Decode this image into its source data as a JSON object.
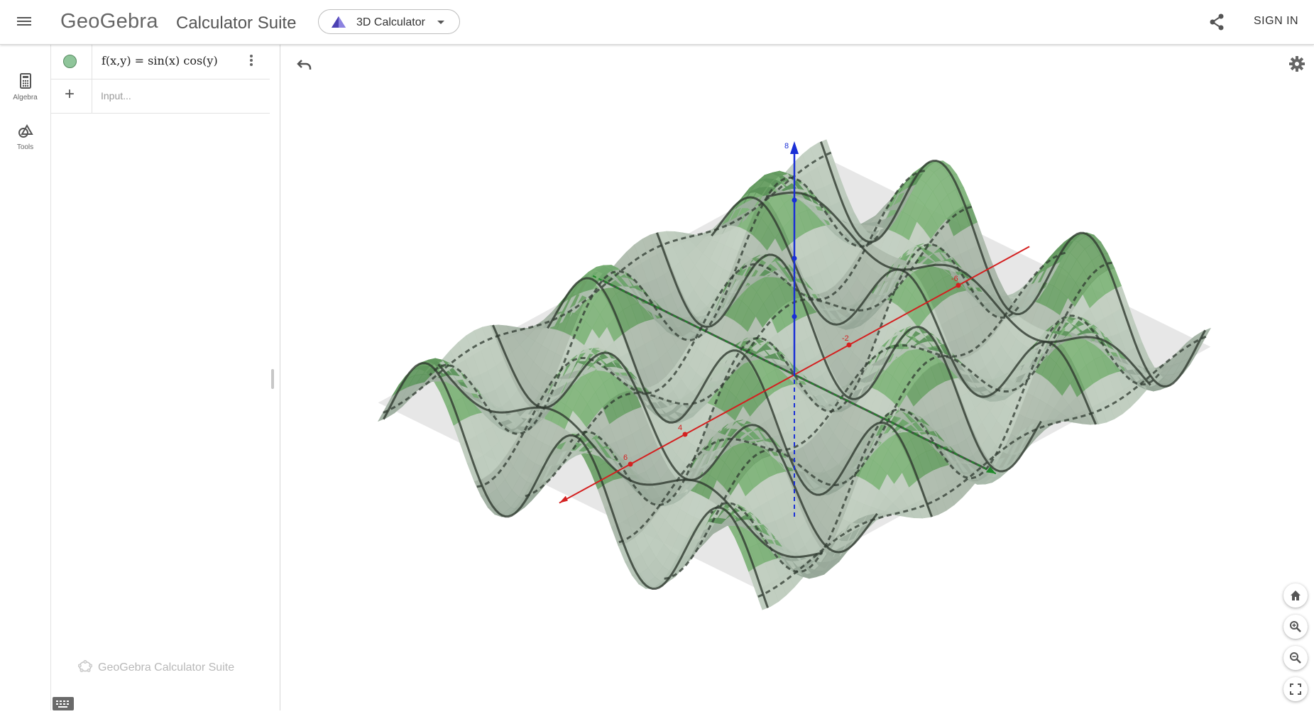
{
  "header": {
    "brand": "GeoGebra",
    "suite": "Calculator Suite",
    "app_label": "3D Calculator",
    "sign_in": "SIGN IN"
  },
  "icons": {
    "menu": "menu-icon",
    "app": "pyramid-icon",
    "share": "share-icon",
    "undo": "undo-icon",
    "settings": "gear-icon",
    "home": "home-icon",
    "zoom_in": "zoom-in-icon",
    "zoom_out": "zoom-out-icon",
    "fullscreen": "fullscreen-icon",
    "keyboard": "keyboard-icon"
  },
  "rail": {
    "algebra": "Algebra",
    "tools": "Tools"
  },
  "algebra": {
    "expression": "f(x,y) = sin(x) cos(y)",
    "input_placeholder": "Input...",
    "footer": "GeoGebra Calculator Suite"
  },
  "axes": {
    "z_max_label": "8",
    "x_labels": [
      "-6",
      "-2",
      "4",
      "6"
    ]
  },
  "colors": {
    "surface": "#5a9a5e",
    "z_axis": "#1a2fd6",
    "x_axis": "#d42020",
    "y_axis": "#1f8a2a",
    "accent": "#6557d2"
  }
}
